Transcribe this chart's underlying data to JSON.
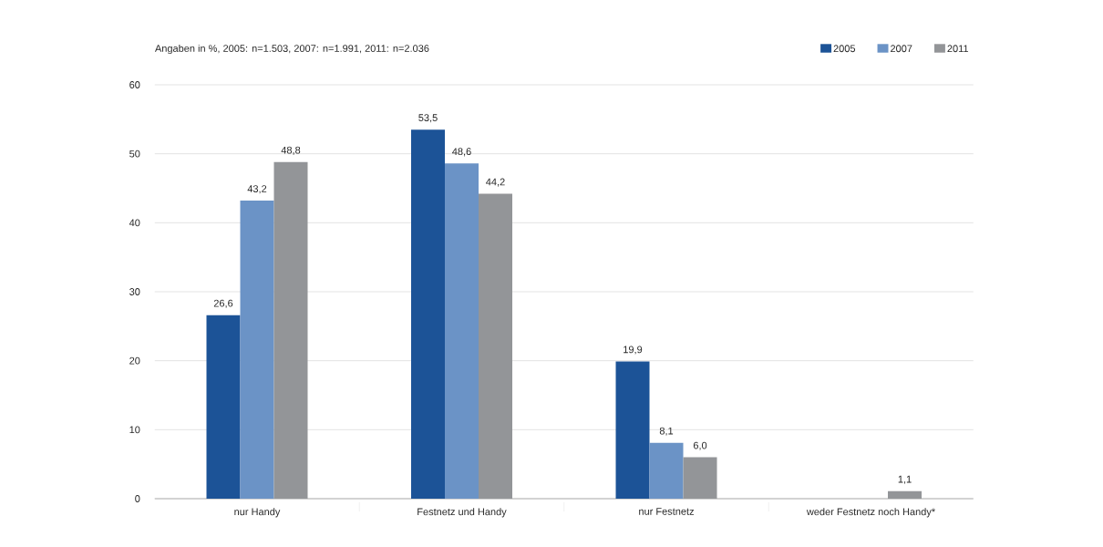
{
  "chart_data": {
    "type": "bar",
    "subtitle": "Angaben in %, 2005: n=1.503, 2007: n=1.991, 2011: n=2.036",
    "categories": [
      "nur Handy",
      "Festnetz und Handy",
      "nur Festnetz",
      "weder Festnetz noch Handy*"
    ],
    "series": [
      {
        "name": "2005",
        "color": "#1c5397",
        "values": [
          26.6,
          53.5,
          19.9,
          null
        ],
        "value_labels": [
          "26,6",
          "53,5",
          "19,9",
          null
        ]
      },
      {
        "name": "2007",
        "color": "#6b93c6",
        "values": [
          43.2,
          48.6,
          8.1,
          null
        ],
        "value_labels": [
          "43,2",
          "48,6",
          "8,1",
          null
        ]
      },
      {
        "name": "2011",
        "color": "#939598",
        "values": [
          48.8,
          44.2,
          6.0,
          1.1
        ],
        "value_labels": [
          "48,8",
          "44,2",
          "6,0",
          "1,1"
        ]
      }
    ],
    "ylim": [
      0,
      60
    ],
    "yticks": [
      0,
      10,
      20,
      30,
      40,
      50,
      60
    ],
    "grid": "y",
    "legend": "top right"
  }
}
